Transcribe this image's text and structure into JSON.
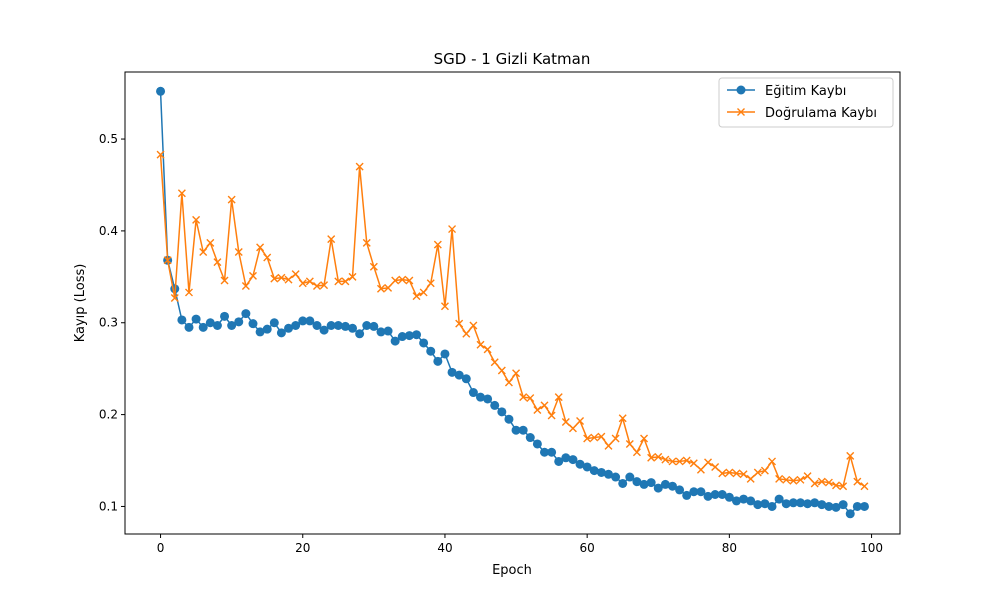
{
  "chart_data": {
    "type": "line",
    "title": "SGD - 1 Gizli Katman",
    "xlabel": "Epoch",
    "ylabel": "Kayıp (Loss)",
    "xlim": [
      -5,
      104
    ],
    "ylim": [
      0.07,
      0.573
    ],
    "xticks": [
      0,
      20,
      40,
      60,
      80,
      100
    ],
    "yticks": [
      0.1,
      0.2,
      0.3,
      0.4,
      0.5
    ],
    "grid": false,
    "legend": "top-right",
    "series": [
      {
        "name": "Eğitim Kaybı",
        "color": "#1f77b4",
        "marker": "circle",
        "values": [
          0.552,
          0.368,
          0.337,
          0.303,
          0.295,
          0.304,
          0.295,
          0.3,
          0.297,
          0.307,
          0.297,
          0.301,
          0.31,
          0.299,
          0.29,
          0.293,
          0.3,
          0.289,
          0.294,
          0.297,
          0.302,
          0.302,
          0.297,
          0.292,
          0.297,
          0.297,
          0.296,
          0.294,
          0.288,
          0.297,
          0.296,
          0.29,
          0.291,
          0.28,
          0.285,
          0.286,
          0.287,
          0.278,
          0.269,
          0.258,
          0.266,
          0.246,
          0.243,
          0.239,
          0.224,
          0.219,
          0.217,
          0.21,
          0.203,
          0.195,
          0.183,
          0.183,
          0.175,
          0.168,
          0.159,
          0.159,
          0.149,
          0.153,
          0.151,
          0.146,
          0.143,
          0.139,
          0.137,
          0.135,
          0.132,
          0.125,
          0.132,
          0.127,
          0.124,
          0.126,
          0.12,
          0.124,
          0.122,
          0.118,
          0.112,
          0.116,
          0.116,
          0.111,
          0.113,
          0.113,
          0.11,
          0.106,
          0.108,
          0.106,
          0.102,
          0.103,
          0.1,
          0.108,
          0.103,
          0.104,
          0.104,
          0.103,
          0.104,
          0.102,
          0.1,
          0.099,
          0.102,
          0.092,
          0.1,
          0.1
        ]
      },
      {
        "name": "Doğrulama Kaybı",
        "color": "#ff7f0e",
        "marker": "x",
        "values": [
          0.483,
          0.368,
          0.327,
          0.441,
          0.333,
          0.412,
          0.377,
          0.387,
          0.366,
          0.346,
          0.434,
          0.377,
          0.34,
          0.351,
          0.382,
          0.371,
          0.348,
          0.349,
          0.347,
          0.353,
          0.343,
          0.345,
          0.34,
          0.341,
          0.391,
          0.345,
          0.345,
          0.35,
          0.47,
          0.387,
          0.361,
          0.337,
          0.338,
          0.346,
          0.347,
          0.346,
          0.329,
          0.333,
          0.343,
          0.385,
          0.318,
          0.402,
          0.299,
          0.288,
          0.297,
          0.276,
          0.271,
          0.257,
          0.248,
          0.235,
          0.245,
          0.219,
          0.218,
          0.205,
          0.21,
          0.199,
          0.219,
          0.192,
          0.185,
          0.193,
          0.174,
          0.175,
          0.176,
          0.166,
          0.174,
          0.196,
          0.168,
          0.159,
          0.174,
          0.153,
          0.154,
          0.151,
          0.149,
          0.149,
          0.15,
          0.147,
          0.14,
          0.148,
          0.143,
          0.136,
          0.137,
          0.136,
          0.135,
          0.13,
          0.137,
          0.139,
          0.149,
          0.13,
          0.129,
          0.128,
          0.129,
          0.133,
          0.125,
          0.127,
          0.126,
          0.123,
          0.122,
          0.155,
          0.127,
          0.122
        ]
      }
    ]
  }
}
